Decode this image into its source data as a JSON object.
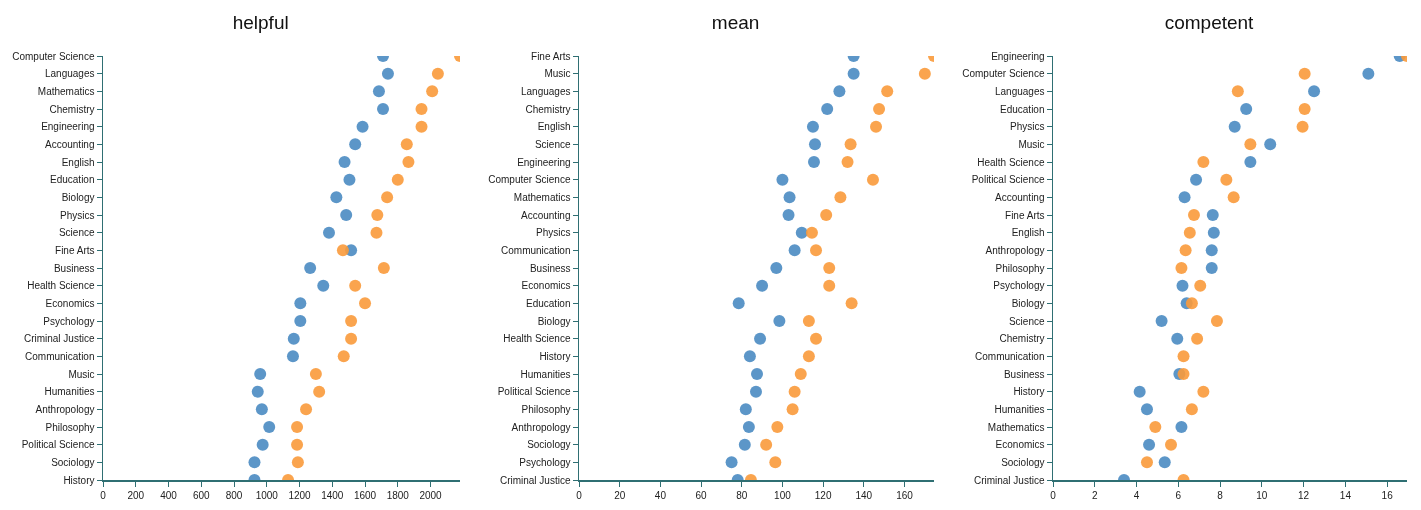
{
  "chart_data": [
    {
      "type": "scatter",
      "title": "helpful",
      "orientation": "horizontal",
      "marker": "circle",
      "categories": [
        "Computer Science",
        "Languages",
        "Mathematics",
        "Chemistry",
        "Engineering",
        "Accounting",
        "English",
        "Education",
        "Biology",
        "Physics",
        "Science",
        "Fine Arts",
        "Business",
        "Health Science",
        "Economics",
        "Psychology",
        "Criminal Justice",
        "Communication",
        "Music",
        "Humanities",
        "Anthropology",
        "Philosophy",
        "Political Science",
        "Sociology",
        "History"
      ],
      "series": [
        {
          "color": "#4a8bc2",
          "values": [
            1710,
            1740,
            1685,
            1710,
            1585,
            1540,
            1475,
            1505,
            1425,
            1485,
            1380,
            1515,
            1265,
            1345,
            1205,
            1205,
            1165,
            1160,
            960,
            945,
            970,
            1015,
            975,
            925,
            925
          ]
        },
        {
          "color": "#f99a3b",
          "values": [
            2180,
            2045,
            2010,
            1945,
            1945,
            1855,
            1865,
            1800,
            1735,
            1675,
            1670,
            1465,
            1715,
            1540,
            1600,
            1515,
            1515,
            1470,
            1300,
            1320,
            1240,
            1185,
            1185,
            1190,
            1130
          ]
        }
      ],
      "xlim": [
        0,
        2180
      ],
      "xticks": [
        0,
        200,
        400,
        600,
        800,
        1000,
        1200,
        1400,
        1600,
        1800,
        2000
      ]
    },
    {
      "type": "scatter",
      "title": "mean",
      "orientation": "horizontal",
      "marker": "circle",
      "categories": [
        "Fine Arts",
        "Music",
        "Languages",
        "Chemistry",
        "English",
        "Science",
        "Engineering",
        "Computer Science",
        "Mathematics",
        "Accounting",
        "Physics",
        "Communication",
        "Business",
        "Economics",
        "Education",
        "Biology",
        "Health Science",
        "History",
        "Humanities",
        "Political Science",
        "Philosophy",
        "Anthropology",
        "Sociology",
        "Psychology",
        "Criminal Justice"
      ],
      "series": [
        {
          "color": "#4a8bc2",
          "values": [
            135,
            135,
            128,
            122,
            115,
            116,
            115.5,
            100,
            103.5,
            103,
            109.5,
            106,
            97,
            90,
            78.5,
            98.5,
            89,
            84,
            87.5,
            87,
            82,
            83.5,
            81.5,
            75,
            78
          ]
        },
        {
          "color": "#f99a3b",
          "values": [
            174.5,
            170,
            151.5,
            147.5,
            146,
            133.5,
            132,
            144.5,
            128.5,
            121.5,
            114.5,
            116.5,
            123,
            123,
            134,
            113,
            116.5,
            113,
            109,
            106,
            105,
            97.5,
            92,
            96.5,
            84.5
          ]
        }
      ],
      "xlim": [
        0,
        174.5
      ],
      "xticks": [
        0,
        20,
        40,
        60,
        80,
        100,
        120,
        140,
        160
      ]
    },
    {
      "type": "scatter",
      "title": "competent",
      "orientation": "horizontal",
      "marker": "circle",
      "categories": [
        "Engineering",
        "Computer Science",
        "Languages",
        "Education",
        "Physics",
        "Music",
        "Health Science",
        "Political Science",
        "Accounting",
        "Fine Arts",
        "English",
        "Anthropology",
        "Philosophy",
        "Psychology",
        "Biology",
        "Science",
        "Chemistry",
        "Communication",
        "Business",
        "History",
        "Humanities",
        "Mathematics",
        "Economics",
        "Sociology",
        "Criminal Justice"
      ],
      "series": [
        {
          "color": "#4a8bc2",
          "values": [
            16.6,
            15.1,
            12.5,
            9.25,
            8.7,
            10.4,
            9.45,
            6.85,
            6.3,
            7.65,
            7.7,
            7.6,
            7.6,
            6.2,
            6.4,
            5.2,
            5.95,
            null,
            6.05,
            4.15,
            4.5,
            6.15,
            4.6,
            5.35,
            3.4
          ]
        },
        {
          "color": "#f99a3b",
          "values": [
            16.95,
            12.05,
            8.85,
            12.05,
            11.95,
            9.45,
            7.2,
            8.3,
            8.65,
            6.75,
            6.55,
            6.35,
            6.15,
            7.05,
            6.65,
            7.85,
            6.9,
            6.25,
            6.25,
            7.2,
            6.65,
            4.9,
            5.65,
            4.5,
            6.25
          ]
        }
      ],
      "xlim": [
        0,
        16.95
      ],
      "xticks": [
        0,
        2,
        4,
        6,
        8,
        10,
        12,
        14,
        16
      ]
    }
  ]
}
